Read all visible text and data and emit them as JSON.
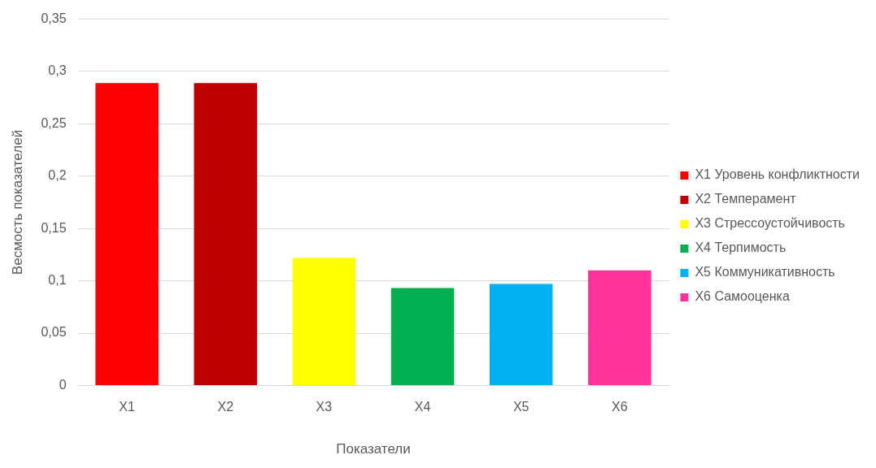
{
  "chart_data": {
    "type": "bar",
    "xlabel": "Показатели",
    "ylabel": "Весмость показателей",
    "categories": [
      "X1",
      "X2",
      "X3",
      "X4",
      "X5",
      "X6"
    ],
    "series": [
      {
        "name": "X1 Уровень конфликтности",
        "color": "#ff0000",
        "values": [
          0.289,
          null,
          null,
          null,
          null,
          null
        ]
      },
      {
        "name": "X2 Темперамент",
        "color": "#c00000",
        "values": [
          null,
          0.289,
          null,
          null,
          null,
          null
        ]
      },
      {
        "name": "X3 Стрессоустойчивость",
        "color": "#ffff00",
        "values": [
          null,
          null,
          0.122,
          null,
          null,
          null
        ]
      },
      {
        "name": "X4 Терпимость",
        "color": "#00b050",
        "values": [
          null,
          null,
          null,
          0.093,
          null,
          null
        ]
      },
      {
        "name": "X5 Коммуникативность",
        "color": "#00b0f0",
        "values": [
          null,
          null,
          null,
          null,
          0.097,
          null
        ]
      },
      {
        "name": "X6 Самооценка",
        "color": "#ff3399",
        "values": [
          null,
          null,
          null,
          null,
          null,
          0.11
        ]
      }
    ],
    "ylim": [
      0,
      0.35
    ],
    "yticks": [
      0,
      {
        "value": 0.05,
        "label": "0,05"
      },
      {
        "value": 0.1,
        "label": "0,1"
      },
      {
        "value": 0.15,
        "label": "0,15"
      },
      {
        "value": 0.2,
        "label": "0,2"
      },
      {
        "value": 0.25,
        "label": "0,25"
      },
      {
        "value": 0.3,
        "label": "0,3"
      },
      {
        "value": 0.35,
        "label": "0,35"
      }
    ],
    "grid": "y",
    "legend": "right"
  }
}
